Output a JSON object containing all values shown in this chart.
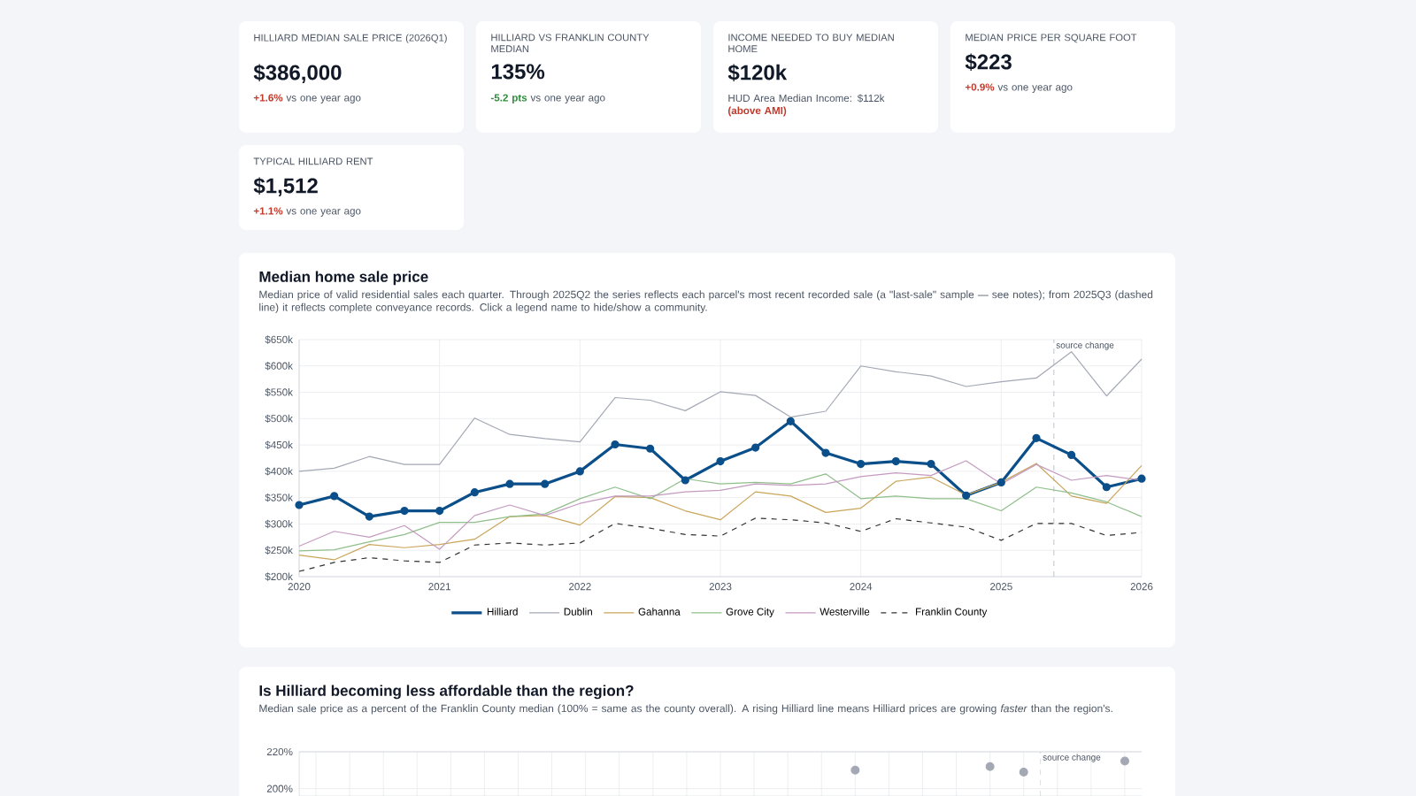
{
  "chart_data": [
    {
      "type": "other",
      "title": "HILLIARD MEDIAN SALE PRICE (2026Q1)",
      "annotations": [
        "$386,000",
        "+1.6%",
        "vs one year ago"
      ],
      "colors": [
        "#111827",
        "#c0392b",
        "#4b5563"
      ]
    },
    {
      "type": "other",
      "title": "HILLIARD VS FRANKLIN COUNTY MEDIAN",
      "annotations": [
        "135%",
        "-5.2 pts",
        "vs one year ago"
      ],
      "colors": [
        "#111827",
        "#2e8b3a",
        "#4b5563"
      ]
    },
    {
      "type": "other",
      "title": "INCOME NEEDED TO BUY MEDIAN HOME",
      "annotations": [
        "$120k",
        "HUD Area Median Income: $112k",
        "(above AMI)"
      ],
      "colors": [
        "#111827",
        "#4b5563",
        "#c0392b"
      ]
    },
    {
      "type": "other",
      "title": "MEDIAN PRICE PER SQUARE FOOT",
      "annotations": [
        "$223",
        "+0.9%",
        "vs one year ago"
      ],
      "colors": [
        "#111827",
        "#c0392b",
        "#4b5563"
      ]
    },
    {
      "type": "other",
      "title": "TYPICAL HILLIARD RENT",
      "annotations": [
        "$1,512",
        "+1.1%",
        "vs one year ago"
      ],
      "colors": [
        "#111827",
        "#c0392b",
        "#4b5563"
      ]
    },
    {
      "type": "line",
      "title": "Median home sale price",
      "subtitle": "Median price of valid residential sales each quarter. Through 2025Q2 the series reflects each parcel's most recent recorded sale (a \"last-sale\" sample — see notes); from 2025Q3 (dashed line) it reflects complete conveyance records. Click a legend name to hide/show a community.",
      "x": [
        2020,
        2020.25,
        2020.5,
        2020.75,
        2021,
        2021.25,
        2021.5,
        2021.75,
        2022,
        2022.25,
        2022.5,
        2022.75,
        2023,
        2023.25,
        2023.5,
        2023.75,
        2024,
        2024.25,
        2024.5,
        2024.75,
        2025,
        2025.25,
        2025.5,
        2025.75,
        2026
      ],
      "xlim": [
        2020,
        2026
      ],
      "xticks": [
        2020,
        2021,
        2022,
        2023,
        2024,
        2025,
        2026
      ],
      "ylim": [
        200000,
        650000
      ],
      "yticks": [
        {
          "value": 200000,
          "label": "$200k"
        },
        {
          "value": 250000,
          "label": "$250k"
        },
        {
          "value": 300000,
          "label": "$300k"
        },
        {
          "value": 350000,
          "label": "$350k"
        },
        {
          "value": 400000,
          "label": "$400k"
        },
        {
          "value": 450000,
          "label": "$450k"
        },
        {
          "value": 500000,
          "label": "$500k"
        },
        {
          "value": 550000,
          "label": "$550k"
        },
        {
          "value": 600000,
          "label": "$600k"
        },
        {
          "value": 650000,
          "label": "$650k"
        }
      ],
      "grid": true,
      "legend": "bottom",
      "ref_lines": [
        {
          "axis": "x",
          "value": 2025.375,
          "label": "source change",
          "color": "#c0c4cc",
          "line_style": "dashed"
        }
      ],
      "series": [
        {
          "name": "Hilliard",
          "color": "#0b4f8a",
          "marker": "circle",
          "values": [
            336000,
            353000,
            314000,
            325000,
            325000,
            360000,
            376000,
            376000,
            400000,
            451000,
            443000,
            383000,
            419000,
            445000,
            495000,
            435000,
            414000,
            419000,
            414000,
            354000,
            379000,
            463000,
            431000,
            370000,
            386000
          ]
        },
        {
          "name": "Dublin",
          "color": "#a3a8b4",
          "values": [
            400000,
            406000,
            428000,
            413000,
            413000,
            501000,
            470000,
            462000,
            456000,
            540000,
            535000,
            515000,
            551000,
            544000,
            503000,
            514000,
            600000,
            589000,
            581000,
            561000,
            570000,
            577000,
            627000,
            543000,
            613000
          ]
        },
        {
          "name": "Gahanna",
          "color": "#c9a55a",
          "values": [
            241000,
            232000,
            261000,
            255000,
            261000,
            271000,
            314000,
            316000,
            298000,
            352000,
            350000,
            325000,
            308000,
            361000,
            353000,
            322000,
            330000,
            381000,
            389000,
            355000,
            379000,
            415000,
            353000,
            339000,
            411000
          ]
        },
        {
          "name": "Grove City",
          "color": "#8fbf8a",
          "values": [
            249000,
            251000,
            266000,
            280000,
            303000,
            303000,
            314000,
            319000,
            348000,
            370000,
            348000,
            386000,
            376000,
            379000,
            376000,
            395000,
            348000,
            353000,
            348000,
            348000,
            325000,
            370000,
            359000,
            342000,
            314000
          ]
        },
        {
          "name": "Westerville",
          "color": "#c49ac0",
          "values": [
            258000,
            286000,
            275000,
            297000,
            252000,
            316000,
            336000,
            316000,
            339000,
            353000,
            353000,
            361000,
            364000,
            376000,
            373000,
            376000,
            390000,
            397000,
            392000,
            420000,
            376000,
            413000,
            383000,
            392000,
            383000
          ]
        },
        {
          "name": "Franklin County",
          "color": "#333333",
          "line_style": "dashed",
          "values": [
            210000,
            227000,
            236000,
            230000,
            227000,
            260000,
            264000,
            260000,
            264000,
            301000,
            292000,
            280000,
            277000,
            311000,
            308000,
            302000,
            286000,
            310000,
            302000,
            294000,
            269000,
            301000,
            301000,
            278000,
            284000
          ]
        }
      ]
    },
    {
      "type": "line",
      "title": "Is Hilliard becoming less affordable than the region?",
      "subtitle": "Median sale price as a percent of the Franklin County median (100% = same as the county overall). A rising Hilliard line means Hilliard prices are growing *faster* than the region's.",
      "categories": [
        null,
        null,
        null,
        null,
        null,
        null,
        null,
        null,
        null,
        null,
        null,
        null,
        null,
        null,
        null,
        null,
        null,
        null,
        null,
        null,
        null,
        null,
        null,
        null,
        null
      ],
      "ylim": [
        196,
        220
      ],
      "yticks": [
        {
          "value": 200,
          "label": "200%"
        },
        {
          "value": 220,
          "label": "220%"
        }
      ],
      "grid": true,
      "tick_labels": "y",
      "annotations": [
        "source change"
      ],
      "series": [
        {
          "type": "scatter",
          "color": "#a3a8b4",
          "marker": "circle",
          "values": [
            null,
            null,
            null,
            null,
            null,
            null,
            null,
            null,
            null,
            null,
            null,
            null,
            null,
            null,
            null,
            null,
            210,
            null,
            null,
            null,
            212,
            209,
            null,
            null,
            215
          ]
        }
      ]
    }
  ]
}
